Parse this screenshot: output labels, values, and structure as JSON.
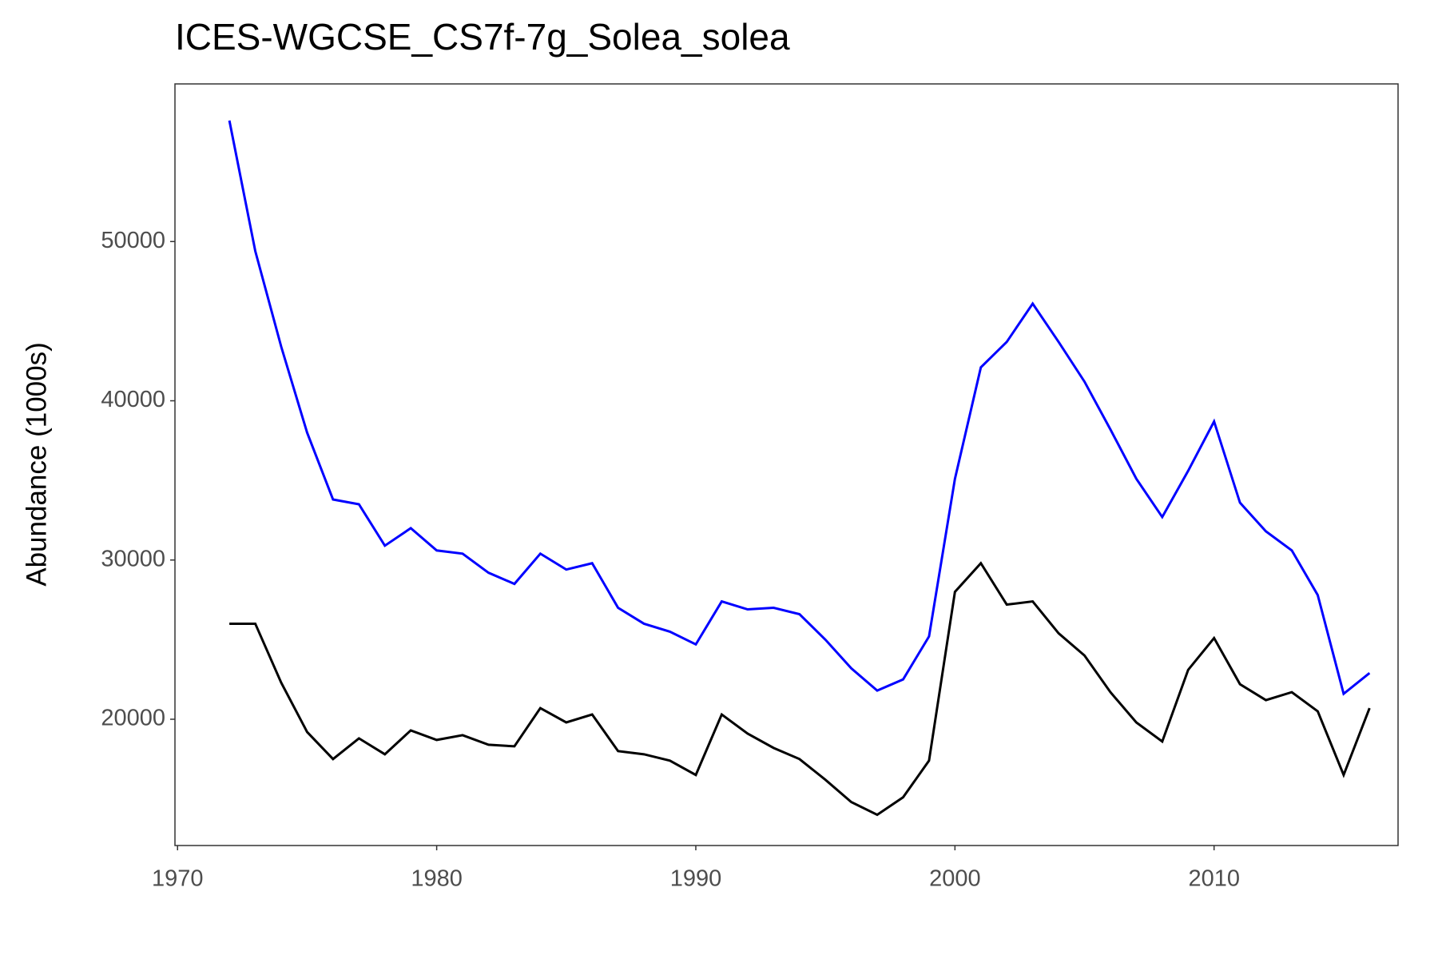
{
  "chart_data": {
    "type": "line",
    "title": "ICES-WGCSE_CS7f-7g_Solea_solea",
    "y_label": "Abundance (1000s)",
    "x": [
      1972,
      1973,
      1974,
      1975,
      1976,
      1977,
      1978,
      1979,
      1980,
      1981,
      1982,
      1983,
      1984,
      1985,
      1986,
      1987,
      1988,
      1989,
      1990,
      1991,
      1992,
      1993,
      1994,
      1995,
      1996,
      1997,
      1998,
      1999,
      2000,
      2001,
      2002,
      2003,
      2004,
      2005,
      2006,
      2007,
      2008,
      2009,
      2010,
      2011,
      2012,
      2013,
      2014,
      2015,
      2016
    ],
    "series": [
      {
        "color": "#0000ff",
        "values": [
          57600,
          49400,
          43400,
          38000,
          33800,
          33500,
          30900,
          32000,
          30600,
          30400,
          29200,
          28500,
          30400,
          29400,
          29800,
          27000,
          26000,
          25500,
          24700,
          27400,
          26900,
          27000,
          26600,
          25000,
          23200,
          21800,
          22500,
          25200,
          35100,
          42100,
          43700,
          46100,
          43700,
          41200,
          38200,
          35100,
          32700,
          35600,
          38700,
          33600,
          31800,
          30600,
          27800,
          21600,
          22900
        ]
      },
      {
        "color": "#000000",
        "values": [
          26000,
          26000,
          22300,
          19200,
          17500,
          18800,
          17800,
          19300,
          18700,
          19000,
          18400,
          18300,
          20700,
          19800,
          20300,
          18000,
          17800,
          17400,
          16500,
          20300,
          19100,
          18200,
          17500,
          16200,
          14800,
          14000,
          15100,
          17400,
          28000,
          29800,
          27200,
          27400,
          25400,
          24000,
          21700,
          19800,
          18600,
          23100,
          25100,
          22200,
          21200,
          21700,
          20500,
          16500,
          20700
        ]
      }
    ],
    "xlim": [
      1969.9,
      2017.1
    ],
    "xticks": [
      1970,
      1980,
      1990,
      2000,
      2010
    ],
    "ylim": [
      12070,
      59900
    ],
    "yticks": [
      20000,
      30000,
      40000,
      50000
    ],
    "grid": false
  }
}
